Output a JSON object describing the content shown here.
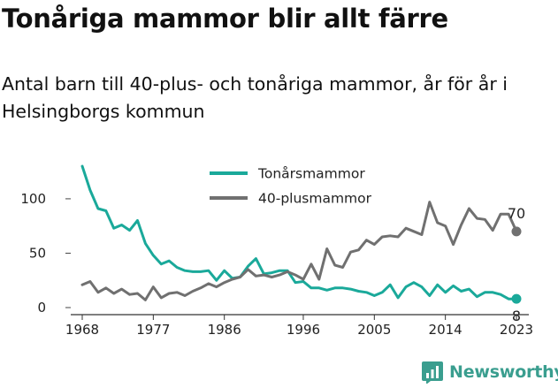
{
  "header": {
    "title": "Tonåriga mammor blir allt färre",
    "subtitle": "Antal barn till 40-plus- och tonåriga mammor, år för år i Helsingborgs kommun"
  },
  "brand": {
    "name": "Newsworthy",
    "logo_icon": "bar-chart-logo-icon",
    "color": "#3a9e8f"
  },
  "chart_data": {
    "type": "line",
    "x": [
      1968,
      1969,
      1970,
      1971,
      1972,
      1973,
      1974,
      1975,
      1976,
      1977,
      1978,
      1979,
      1980,
      1981,
      1982,
      1983,
      1984,
      1985,
      1986,
      1987,
      1988,
      1989,
      1990,
      1991,
      1992,
      1993,
      1994,
      1995,
      1996,
      1997,
      1998,
      1999,
      2000,
      2001,
      2002,
      2003,
      2004,
      2005,
      2006,
      2007,
      2008,
      2009,
      2010,
      2011,
      2012,
      2013,
      2014,
      2015,
      2016,
      2017,
      2018,
      2019,
      2020,
      2021,
      2022,
      2023
    ],
    "series": [
      {
        "name": "Tonårsmammor",
        "color": "#1aa99a",
        "values": [
          130,
          108,
          91,
          89,
          73,
          76,
          71,
          80,
          59,
          48,
          40,
          43,
          37,
          34,
          33,
          33,
          34,
          25,
          34,
          27,
          28,
          38,
          45,
          31,
          32,
          34,
          34,
          23,
          24,
          18,
          18,
          16,
          18,
          18,
          17,
          15,
          14,
          11,
          14,
          21,
          9,
          19,
          23,
          19,
          11,
          21,
          14,
          20,
          15,
          17,
          10,
          14,
          14,
          12,
          8,
          8
        ]
      },
      {
        "name": "40-plusmammor",
        "color": "#707070",
        "values": [
          21,
          24,
          14,
          18,
          13,
          17,
          12,
          13,
          7,
          19,
          9,
          13,
          14,
          11,
          15,
          18,
          22,
          19,
          23,
          26,
          28,
          35,
          29,
          30,
          28,
          30,
          33,
          30,
          26,
          40,
          26,
          54,
          39,
          37,
          51,
          53,
          62,
          58,
          65,
          66,
          65,
          73,
          70,
          67,
          97,
          78,
          75,
          58,
          76,
          91,
          82,
          81,
          71,
          86,
          86,
          70
        ]
      }
    ],
    "end_labels": {
      "Tonårsmammor": "8",
      "40-plusmammor": "70"
    },
    "x_ticks": [
      1968,
      1977,
      1986,
      1996,
      2005,
      2014,
      2023
    ],
    "y_ticks": [
      0,
      50,
      100
    ],
    "xlim": [
      1968,
      2023
    ],
    "ylim": [
      0,
      130
    ],
    "grid": false,
    "legend_position": "top"
  }
}
